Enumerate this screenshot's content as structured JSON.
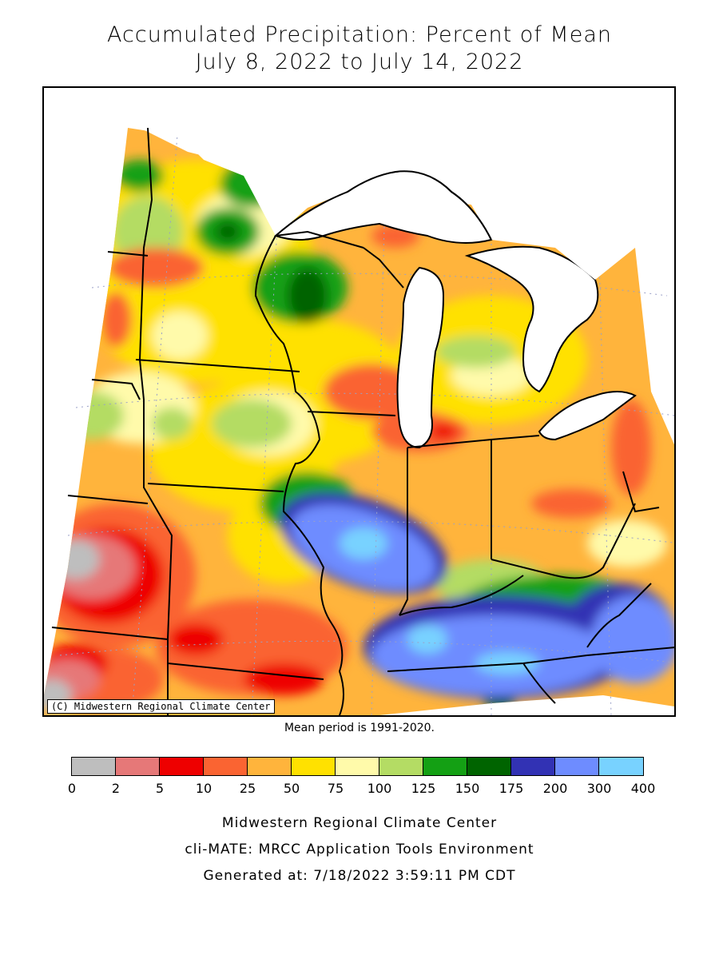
{
  "header": {
    "title_line1": "Accumulated Precipitation: Percent of Mean",
    "title_line2": "July 8, 2022 to July 14, 2022"
  },
  "map": {
    "copyright": "(C) Midwestern Regional Climate Center",
    "region": "Upper Midwest and Ohio Valley",
    "lake_color": "#ffffff"
  },
  "mean_period": "Mean period is 1991-2020.",
  "legend": {
    "bins": [
      {
        "color": "#bebebe"
      },
      {
        "color": "#e67878"
      },
      {
        "color": "#ee0000"
      },
      {
        "color": "#fa6432"
      },
      {
        "color": "#ffb43c"
      },
      {
        "color": "#ffe100"
      },
      {
        "color": "#fffaaa"
      },
      {
        "color": "#b4dc64"
      },
      {
        "color": "#14a014"
      },
      {
        "color": "#006400"
      },
      {
        "color": "#3232b4"
      },
      {
        "color": "#6e8cff"
      },
      {
        "color": "#78d2ff"
      }
    ],
    "labels": [
      "0",
      "2",
      "5",
      "10",
      "25",
      "50",
      "75",
      "100",
      "125",
      "150",
      "175",
      "200",
      "300",
      "400"
    ]
  },
  "footer": {
    "line1": "Midwestern Regional Climate Center",
    "line2": "cli-MATE: MRCC Application Tools Environment",
    "line3": "Generated at: 7/18/2022 3:59:11 PM CDT"
  }
}
